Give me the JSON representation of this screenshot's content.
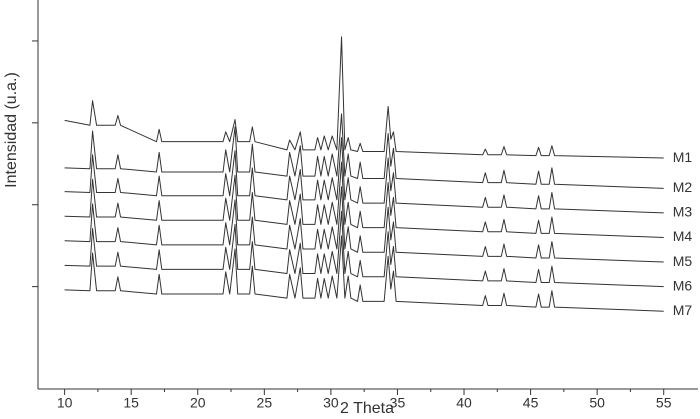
{
  "chart_data": {
    "type": "line",
    "x_label": "2 Theta",
    "y_label": "Intensidad (u.a.)",
    "xlim": [
      8,
      57.5
    ],
    "xticks": [
      10,
      15,
      20,
      25,
      30,
      35,
      40,
      45,
      50,
      55
    ],
    "xminorticks": [
      12.5,
      17.5,
      22.5,
      27.5,
      32.5,
      37.5,
      42.5,
      47.5,
      52.5
    ],
    "ylim": [
      0,
      4.75
    ],
    "yticks": [
      1.25,
      2.25,
      3.25,
      4.25
    ],
    "y_tick_labels": false,
    "x": [
      10,
      11.9,
      12.1,
      12.4,
      13.8,
      14.0,
      14.2,
      16.9,
      17.1,
      17.3,
      21.9,
      22.1,
      22.4,
      22.8,
      23.0,
      23.9,
      24.1,
      24.3,
      26.7,
      26.9,
      27.3,
      27.7,
      27.9,
      28.8,
      29.0,
      29.25,
      29.5,
      29.8,
      30.1,
      30.45,
      30.8,
      31.05,
      31.3,
      31.5,
      32.0,
      32.2,
      32.4,
      34.0,
      34.3,
      34.5,
      34.7,
      34.9,
      41.4,
      41.6,
      41.8,
      42.8,
      43.0,
      43.2,
      45.4,
      45.6,
      45.8,
      46.4,
      46.6,
      46.8,
      55
    ],
    "series": [
      {
        "name": "M1",
        "color": "#333333",
        "values": [
          3.28,
          3.22,
          3.52,
          3.22,
          3.22,
          3.34,
          3.22,
          3.02,
          3.17,
          3.02,
          3.02,
          3.14,
          3.02,
          3.29,
          3.02,
          3.02,
          3.2,
          3.02,
          2.92,
          3.04,
          2.92,
          3.14,
          2.92,
          2.92,
          3.07,
          2.92,
          3.09,
          2.92,
          3.09,
          2.92,
          4.3,
          2.92,
          3.07,
          2.92,
          2.9,
          3.0,
          2.9,
          2.9,
          3.45,
          3.05,
          3.14,
          2.9,
          2.86,
          2.93,
          2.86,
          2.86,
          2.96,
          2.86,
          2.85,
          2.95,
          2.85,
          2.85,
          2.97,
          2.85,
          2.82
        ]
      },
      {
        "name": "M2",
        "color": "#333333",
        "values": [
          2.7,
          2.69,
          3.15,
          2.69,
          2.69,
          2.86,
          2.69,
          2.65,
          2.89,
          2.65,
          2.65,
          2.92,
          2.65,
          3.2,
          2.65,
          2.65,
          2.99,
          2.65,
          2.6,
          2.89,
          2.6,
          2.97,
          2.6,
          2.6,
          2.84,
          2.6,
          2.84,
          2.6,
          2.87,
          2.6,
          3.36,
          2.6,
          2.87,
          2.6,
          2.57,
          2.77,
          2.57,
          2.57,
          3.12,
          2.72,
          2.94,
          2.57,
          2.52,
          2.64,
          2.52,
          2.52,
          2.67,
          2.52,
          2.5,
          2.66,
          2.5,
          2.5,
          2.7,
          2.5,
          2.45
        ]
      },
      {
        "name": "M3",
        "color": "#333333",
        "values": [
          2.41,
          2.4,
          2.86,
          2.4,
          2.4,
          2.57,
          2.4,
          2.36,
          2.6,
          2.36,
          2.36,
          2.63,
          2.36,
          2.91,
          2.36,
          2.36,
          2.7,
          2.36,
          2.31,
          2.6,
          2.31,
          2.68,
          2.31,
          2.31,
          2.55,
          2.31,
          2.55,
          2.31,
          2.58,
          2.31,
          3.07,
          2.31,
          2.58,
          2.31,
          2.27,
          2.47,
          2.27,
          2.27,
          2.82,
          2.42,
          2.64,
          2.27,
          2.22,
          2.34,
          2.22,
          2.22,
          2.37,
          2.22,
          2.2,
          2.36,
          2.2,
          2.2,
          2.4,
          2.2,
          2.15
        ]
      },
      {
        "name": "M4",
        "color": "#333333",
        "values": [
          2.11,
          2.1,
          2.56,
          2.1,
          2.1,
          2.27,
          2.1,
          2.06,
          2.3,
          2.06,
          2.06,
          2.33,
          2.06,
          2.61,
          2.06,
          2.06,
          2.4,
          2.06,
          2.01,
          2.3,
          2.01,
          2.38,
          2.01,
          2.01,
          2.25,
          2.01,
          2.25,
          2.01,
          2.28,
          2.01,
          2.77,
          2.01,
          2.28,
          2.01,
          1.97,
          2.17,
          1.97,
          1.97,
          2.52,
          2.12,
          2.34,
          1.97,
          1.92,
          2.04,
          1.92,
          1.92,
          2.07,
          1.92,
          1.9,
          2.06,
          1.9,
          1.9,
          2.1,
          1.9,
          1.85
        ]
      },
      {
        "name": "M5",
        "color": "#333333",
        "values": [
          1.81,
          1.8,
          2.26,
          1.8,
          1.8,
          1.97,
          1.8,
          1.76,
          2.0,
          1.76,
          1.76,
          2.03,
          1.76,
          2.31,
          1.76,
          1.76,
          2.1,
          1.76,
          1.71,
          2.0,
          1.71,
          2.08,
          1.71,
          1.71,
          1.95,
          1.71,
          1.95,
          1.71,
          1.98,
          1.71,
          2.47,
          1.71,
          1.98,
          1.71,
          1.67,
          1.87,
          1.67,
          1.67,
          2.22,
          1.82,
          2.04,
          1.67,
          1.62,
          1.74,
          1.62,
          1.62,
          1.77,
          1.62,
          1.6,
          1.76,
          1.6,
          1.6,
          1.8,
          1.6,
          1.55
        ]
      },
      {
        "name": "M6",
        "color": "#333333",
        "values": [
          1.51,
          1.5,
          1.96,
          1.5,
          1.5,
          1.67,
          1.5,
          1.46,
          1.7,
          1.46,
          1.46,
          1.73,
          1.46,
          2.01,
          1.46,
          1.46,
          1.8,
          1.46,
          1.41,
          1.7,
          1.41,
          1.78,
          1.41,
          1.41,
          1.65,
          1.41,
          1.65,
          1.41,
          1.68,
          1.41,
          2.17,
          1.41,
          1.68,
          1.41,
          1.37,
          1.57,
          1.37,
          1.37,
          1.92,
          1.52,
          1.74,
          1.37,
          1.32,
          1.44,
          1.32,
          1.32,
          1.47,
          1.32,
          1.3,
          1.46,
          1.3,
          1.3,
          1.5,
          1.3,
          1.25
        ]
      },
      {
        "name": "M7",
        "color": "#333333",
        "values": [
          1.21,
          1.2,
          1.66,
          1.2,
          1.2,
          1.37,
          1.2,
          1.16,
          1.4,
          1.16,
          1.16,
          1.43,
          1.16,
          1.71,
          1.16,
          1.16,
          1.5,
          1.16,
          1.11,
          1.4,
          1.11,
          1.48,
          1.11,
          1.11,
          1.35,
          1.11,
          1.35,
          1.11,
          1.38,
          1.11,
          1.87,
          1.11,
          1.38,
          1.11,
          1.07,
          1.27,
          1.07,
          1.07,
          1.62,
          1.22,
          1.44,
          1.07,
          1.02,
          1.14,
          1.02,
          1.02,
          1.17,
          1.02,
          1.0,
          1.16,
          1.0,
          1.0,
          1.2,
          1.0,
          0.95
        ]
      }
    ]
  }
}
